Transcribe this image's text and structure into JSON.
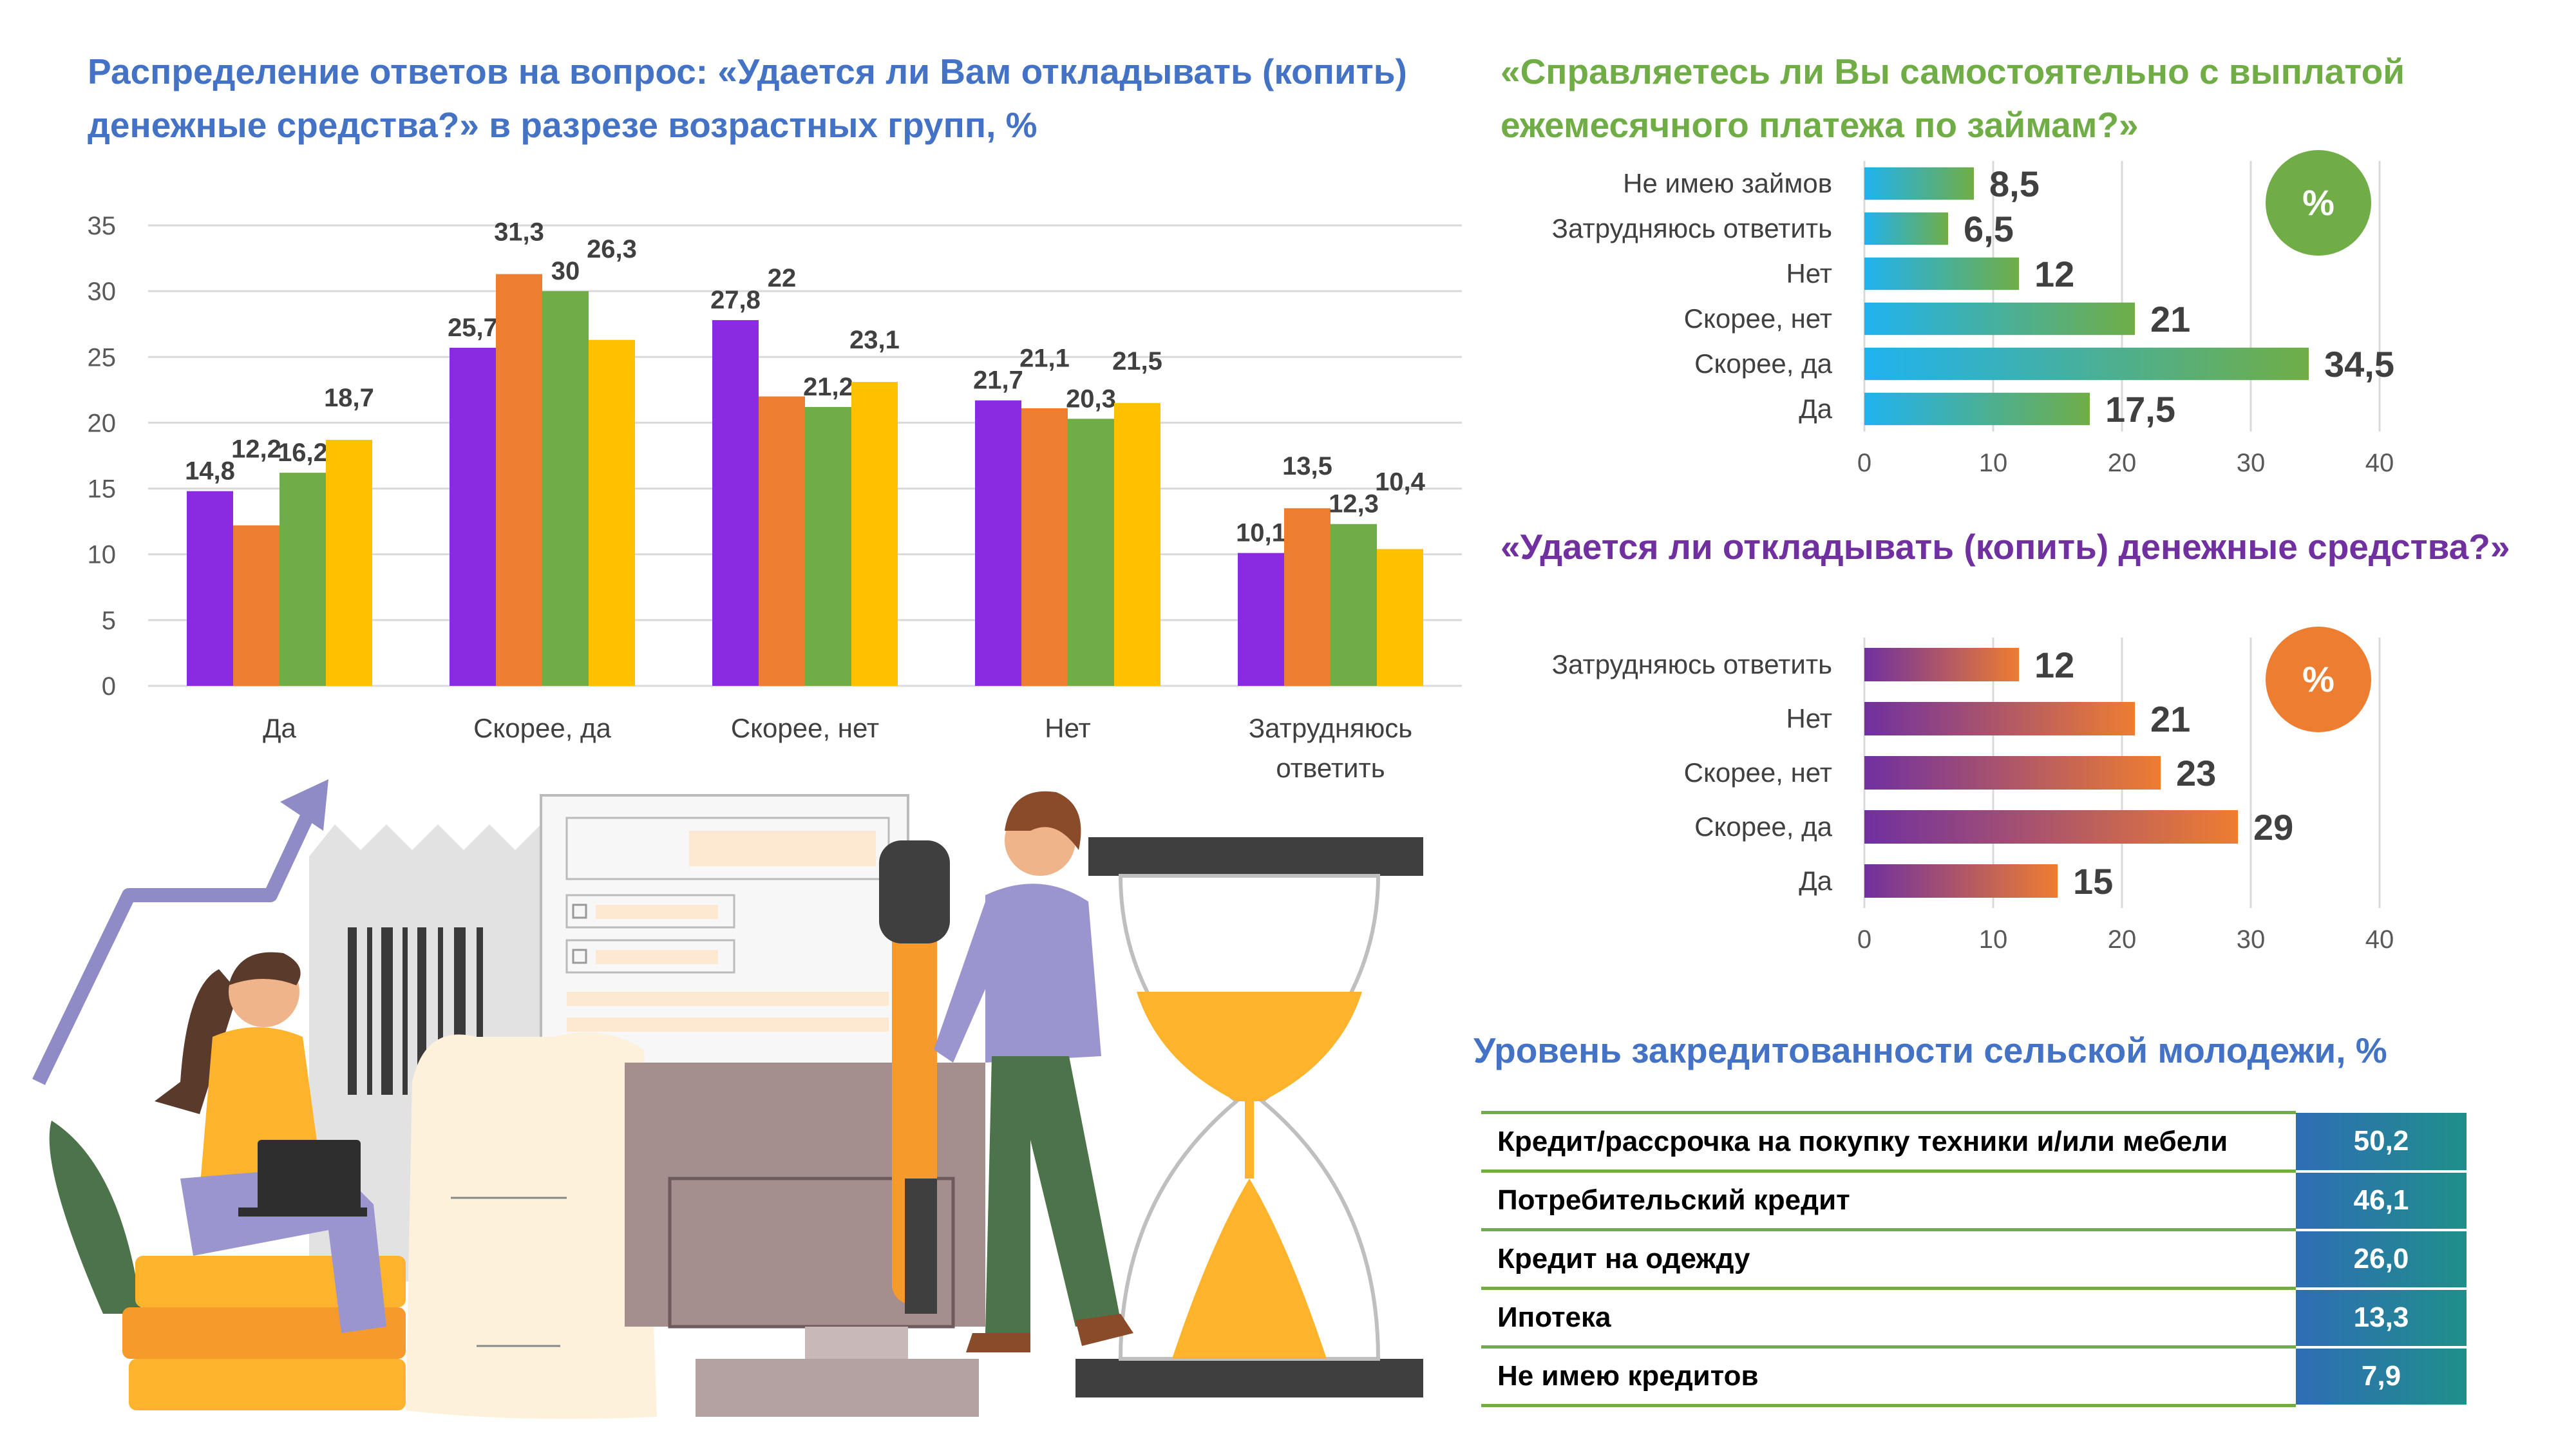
{
  "palette": {
    "purple": "#8A2BE2",
    "orange": "#ED7D31",
    "green": "#70AD47",
    "yellow": "#FFC000",
    "sky": "#1FB2F0",
    "violet": "#7030A0",
    "title_blue": "#4472C4"
  },
  "chart_data": [
    {
      "type": "bar",
      "title": "Распределение ответов на вопрос: «Удается ли Вам откладывать (копить) денежные средства?» в разрезе возрастных групп, %",
      "categories": [
        "Да",
        "Скорее, да",
        "Скорее, нет",
        "Нет",
        "Затрудняюсь ответить"
      ],
      "series": [
        {
          "values": [
            14.8,
            25.7,
            27.8,
            21.7,
            10.1
          ],
          "color": "#8A2BE2"
        },
        {
          "values": [
            12.2,
            31.3,
            22.0,
            21.1,
            13.5
          ],
          "color": "#ED7D31"
        },
        {
          "values": [
            16.2,
            30.0,
            21.2,
            20.3,
            12.3
          ],
          "color": "#70AD47"
        },
        {
          "values": [
            18.7,
            26.3,
            23.1,
            21.5,
            10.4
          ],
          "color": "#FFC000"
        }
      ],
      "value_labels": [
        [
          "14,8",
          "25,7",
          "27,8",
          "21,7",
          "10,1"
        ],
        [
          "12,2",
          "31,3",
          "22",
          "21,1",
          "13,5"
        ],
        [
          "16,2",
          "30",
          "21,2",
          "20,3",
          "12,3"
        ],
        [
          "18,7",
          "26,3",
          "23,1",
          "21,5",
          "10,4"
        ]
      ],
      "yticks": [
        "0",
        "5",
        "10",
        "15",
        "20",
        "25",
        "30",
        "35"
      ],
      "ylim": [
        0,
        35
      ],
      "grid": true,
      "legend": "none"
    },
    {
      "type": "bar",
      "orientation": "horizontal",
      "title": "«Справляетесь ли Вы самостоятельно с выплатой ежемесячного платежа по займам?»",
      "badge": "%",
      "categories": [
        "Не имею займов",
        "Затрудняюсь ответить",
        "Нет",
        "Скорее, нет",
        "Скорее, да",
        "Да"
      ],
      "values": [
        8.5,
        6.5,
        12,
        21,
        34.5,
        17.5
      ],
      "value_labels": [
        "8,5",
        "6,5",
        "12",
        "21",
        "34,5",
        "17,5"
      ],
      "xticks": [
        "0",
        "10",
        "20",
        "30",
        "40"
      ],
      "xlim": [
        0,
        40
      ],
      "grid": true,
      "gradient": [
        "#1FB2F0",
        "#70AD47"
      ]
    },
    {
      "type": "bar",
      "orientation": "horizontal",
      "title": "«Удается ли откладывать (копить) денежные средства?»",
      "badge": "%",
      "categories": [
        "Затрудняюсь ответить",
        "Нет",
        "Скорее, нет",
        "Скорее, да",
        "Да"
      ],
      "values": [
        12,
        21,
        23,
        29,
        15
      ],
      "value_labels": [
        "12",
        "21",
        "23",
        "29",
        "15"
      ],
      "xticks": [
        "0",
        "10",
        "20",
        "30",
        "40"
      ],
      "xlim": [
        0,
        40
      ],
      "grid": true,
      "gradient": [
        "#7030A0",
        "#ED7D31"
      ]
    },
    {
      "type": "table",
      "title": "Уровень закредитованности сельской молодежи, %",
      "rows": [
        {
          "label": "Кредит/рассрочка на покупку техники и/или мебели",
          "value": "50,2"
        },
        {
          "label": "Потребительский кредит",
          "value": "46,1"
        },
        {
          "label": "Кредит на одежду",
          "value": "26,0"
        },
        {
          "label": "Ипотека",
          "value": "13,3"
        },
        {
          "label": "Не имею кредитов",
          "value": "7,9"
        }
      ]
    }
  ]
}
